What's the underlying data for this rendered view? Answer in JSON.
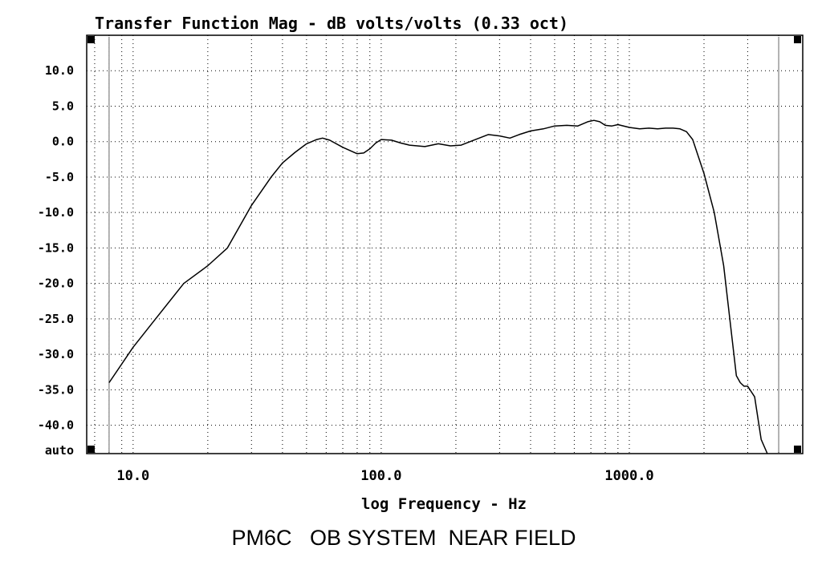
{
  "chart_data": {
    "type": "line",
    "title": "Transfer Function Mag - dB volts/volts (0.33 oct)",
    "xlabel": "log Frequency - Hz",
    "caption": "PM6C   OB SYSTEM  NEAR FIELD",
    "x_scale": "log",
    "xlim": [
      6.5,
      5000
    ],
    "ylim": [
      -44,
      15
    ],
    "grid": true,
    "x_tick_labels": [
      {
        "value": 10,
        "label": "10.0"
      },
      {
        "value": 100,
        "label": "100.0"
      },
      {
        "value": 1000,
        "label": "1000.0"
      }
    ],
    "y_ticks": [
      {
        "value": 10,
        "label": "10.0"
      },
      {
        "value": 5,
        "label": "5.0"
      },
      {
        "value": 0,
        "label": "0.0"
      },
      {
        "value": -5,
        "label": "-5.0"
      },
      {
        "value": -10,
        "label": "-10.0"
      },
      {
        "value": -15,
        "label": "-15.0"
      },
      {
        "value": -20,
        "label": "-20.0"
      },
      {
        "value": -25,
        "label": "-25.0"
      },
      {
        "value": -30,
        "label": "-30.0"
      },
      {
        "value": -35,
        "label": "-35.0"
      },
      {
        "value": -40,
        "label": "-40.0"
      }
    ],
    "y_bottom_label": "auto",
    "cursor_lines": [
      8,
      4000
    ],
    "series": [
      {
        "x": [
          8,
          10,
          12,
          16,
          20,
          24,
          30,
          36,
          40,
          45,
          50,
          55,
          58,
          62,
          70,
          80,
          85,
          90,
          95,
          100,
          110,
          120,
          130,
          150,
          170,
          190,
          210,
          240,
          270,
          300,
          330,
          360,
          400,
          450,
          500,
          560,
          620,
          680,
          720,
          760,
          800,
          850,
          900,
          1000,
          1100,
          1200,
          1300,
          1400,
          1500,
          1600,
          1700,
          1800,
          2000,
          2200,
          2400,
          2600,
          2700,
          2800,
          2900,
          3000,
          3200,
          3400,
          3600
        ],
        "y": [
          -34,
          -29,
          -25.5,
          -20,
          -17.5,
          -15,
          -9,
          -5,
          -3,
          -1.5,
          -0.3,
          0.3,
          0.5,
          0.2,
          -0.8,
          -1.7,
          -1.6,
          -1.0,
          -0.2,
          0.3,
          0.2,
          -0.2,
          -0.5,
          -0.7,
          -0.3,
          -0.6,
          -0.5,
          0.3,
          1.0,
          0.8,
          0.5,
          1.0,
          1.5,
          1.8,
          2.2,
          2.3,
          2.2,
          2.8,
          3.0,
          2.8,
          2.3,
          2.2,
          2.4,
          2.0,
          1.8,
          1.9,
          1.8,
          1.9,
          1.9,
          1.8,
          1.4,
          0.3,
          -4.5,
          -10,
          -17.5,
          -28,
          -33,
          -34,
          -34.5,
          -34.5,
          -36,
          -42,
          -44
        ]
      }
    ]
  }
}
